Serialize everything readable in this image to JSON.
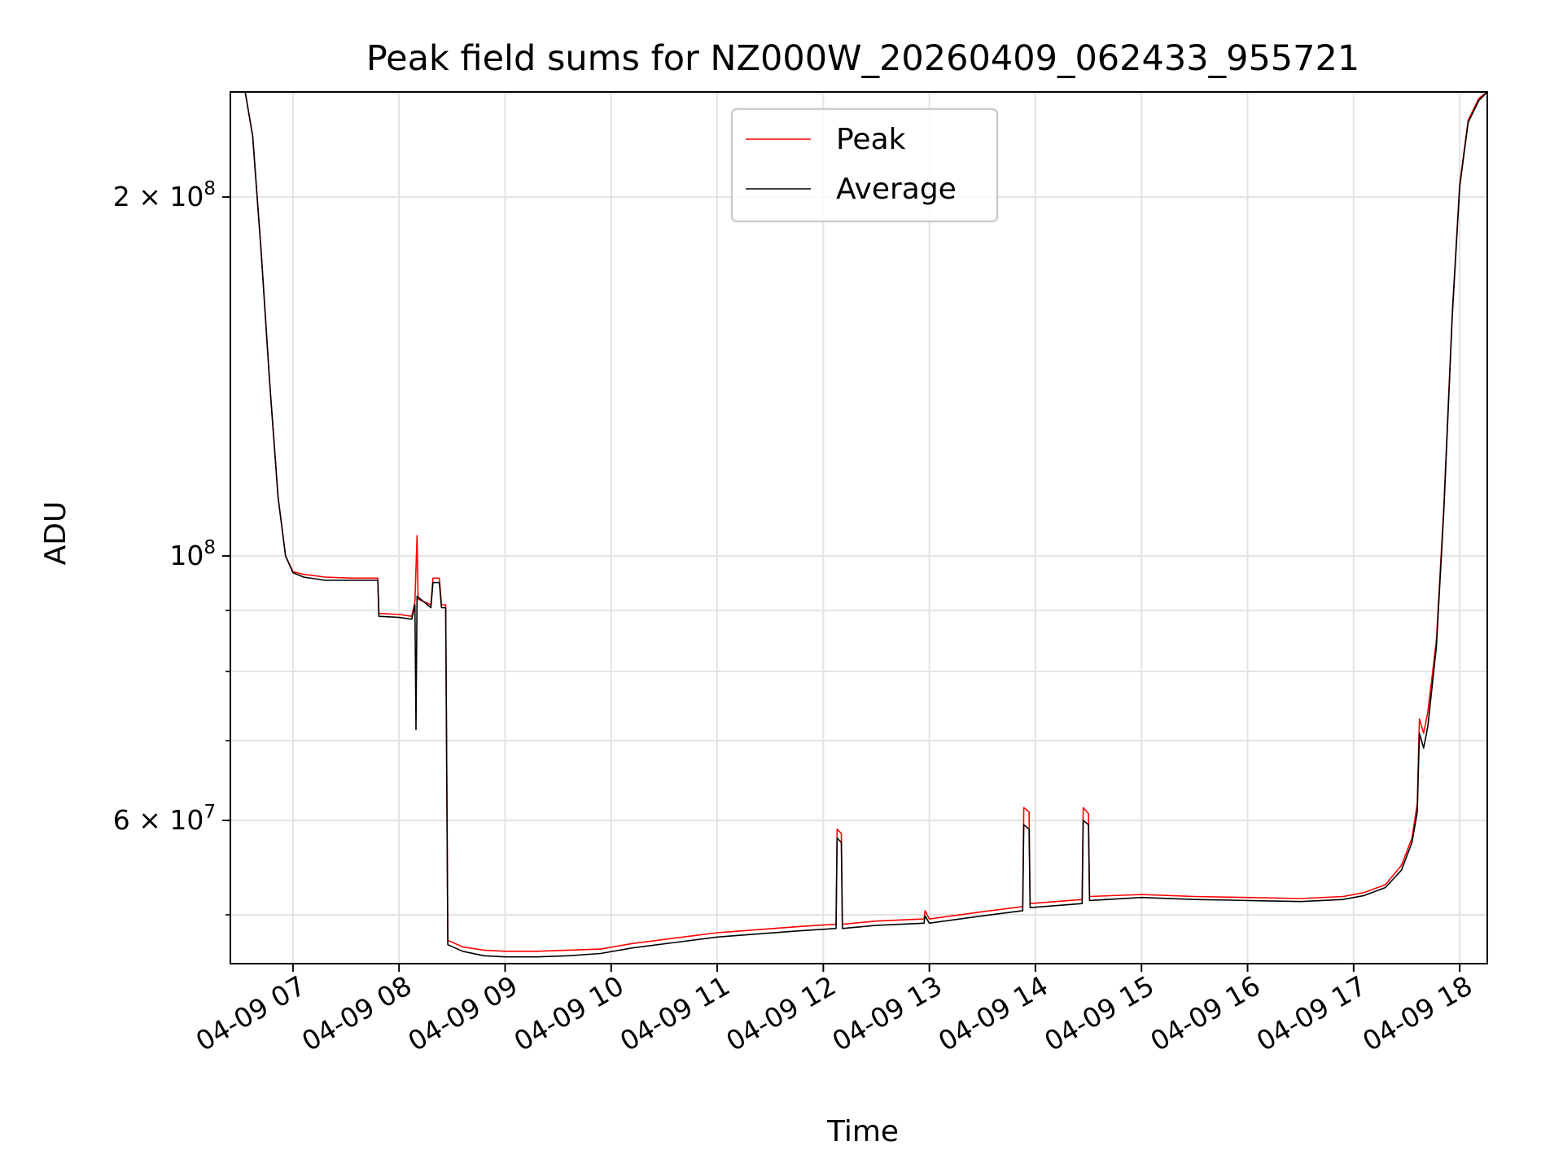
{
  "chart_data": {
    "type": "line",
    "title": "Peak field sums for NZ000W_20260409_062433_955721",
    "xlabel": "Time",
    "ylabel": "ADU",
    "yscale": "log",
    "ylim": [
      45500000,
      245000000
    ],
    "xlim_hours": [
      6.41,
      18.26
    ],
    "grid": true,
    "legend_position": "top-center",
    "x_ticks": [
      {
        "value": 7,
        "label": "04-09 07"
      },
      {
        "value": 8,
        "label": "04-09 08"
      },
      {
        "value": 9,
        "label": "04-09 09"
      },
      {
        "value": 10,
        "label": "04-09 10"
      },
      {
        "value": 11,
        "label": "04-09 11"
      },
      {
        "value": 12,
        "label": "04-09 12"
      },
      {
        "value": 13,
        "label": "04-09 13"
      },
      {
        "value": 14,
        "label": "04-09 14"
      },
      {
        "value": 15,
        "label": "04-09 15"
      },
      {
        "value": 16,
        "label": "04-09 16"
      },
      {
        "value": 17,
        "label": "04-09 17"
      },
      {
        "value": 18,
        "label": "04-09 18"
      }
    ],
    "y_major_ticks": [
      {
        "value": 60000000,
        "mantissa": "6",
        "label": "6 × 10⁷",
        "exp": "7"
      },
      {
        "value": 100000000,
        "mantissa": "",
        "label": "10⁸",
        "exp": "8"
      },
      {
        "value": 200000000,
        "mantissa": "2",
        "label": "2 × 10⁸",
        "exp": "8"
      }
    ],
    "y_minor_ticks": [
      50000000,
      70000000,
      80000000,
      90000000
    ],
    "series": [
      {
        "name": "Peak",
        "color": "#ff0000",
        "points": [
          [
            6.41,
            245000000
          ],
          [
            6.55,
            245000000
          ],
          [
            6.62,
            225000000
          ],
          [
            6.7,
            180000000
          ],
          [
            6.78,
            140000000
          ],
          [
            6.86,
            112000000
          ],
          [
            6.93,
            100000000
          ],
          [
            7.0,
            97000000
          ],
          [
            7.1,
            96500000
          ],
          [
            7.3,
            96000000
          ],
          [
            7.55,
            95800000
          ],
          [
            7.8,
            95800000
          ],
          [
            7.81,
            89500000
          ],
          [
            8.0,
            89300000
          ],
          [
            8.12,
            89000000
          ],
          [
            8.15,
            91500000
          ],
          [
            8.17,
            104000000
          ],
          [
            8.18,
            92000000
          ],
          [
            8.3,
            91000000
          ],
          [
            8.32,
            95800000
          ],
          [
            8.38,
            95800000
          ],
          [
            8.4,
            91000000
          ],
          [
            8.44,
            91000000
          ],
          [
            8.46,
            47600000
          ],
          [
            8.6,
            47000000
          ],
          [
            8.8,
            46700000
          ],
          [
            9.0,
            46600000
          ],
          [
            9.3,
            46600000
          ],
          [
            9.6,
            46700000
          ],
          [
            9.9,
            46800000
          ],
          [
            10.2,
            47300000
          ],
          [
            10.6,
            47800000
          ],
          [
            11.0,
            48300000
          ],
          [
            11.4,
            48600000
          ],
          [
            11.8,
            48900000
          ],
          [
            12.12,
            49100000
          ],
          [
            12.13,
            59000000
          ],
          [
            12.17,
            58500000
          ],
          [
            12.18,
            49100000
          ],
          [
            12.5,
            49400000
          ],
          [
            12.95,
            49600000
          ],
          [
            12.96,
            50400000
          ],
          [
            13.0,
            49600000
          ],
          [
            13.5,
            50300000
          ],
          [
            13.88,
            50800000
          ],
          [
            13.89,
            61500000
          ],
          [
            13.94,
            61000000
          ],
          [
            13.95,
            51100000
          ],
          [
            14.44,
            51500000
          ],
          [
            14.45,
            61500000
          ],
          [
            14.5,
            60800000
          ],
          [
            14.51,
            51800000
          ],
          [
            15.0,
            52000000
          ],
          [
            15.5,
            51800000
          ],
          [
            16.0,
            51700000
          ],
          [
            16.5,
            51600000
          ],
          [
            16.9,
            51800000
          ],
          [
            17.1,
            52200000
          ],
          [
            17.3,
            53000000
          ],
          [
            17.45,
            55000000
          ],
          [
            17.55,
            58000000
          ],
          [
            17.6,
            62000000
          ],
          [
            17.62,
            73000000
          ],
          [
            17.66,
            71000000
          ],
          [
            17.7,
            74000000
          ],
          [
            17.78,
            85000000
          ],
          [
            17.85,
            110000000
          ],
          [
            17.93,
            160000000
          ],
          [
            18.0,
            205000000
          ],
          [
            18.08,
            232000000
          ],
          [
            18.18,
            242000000
          ],
          [
            18.26,
            245000000
          ]
        ]
      },
      {
        "name": "Average",
        "color": "#000000",
        "points": [
          [
            6.41,
            245000000
          ],
          [
            6.55,
            245000000
          ],
          [
            6.62,
            225000000
          ],
          [
            6.7,
            180000000
          ],
          [
            6.78,
            140000000
          ],
          [
            6.86,
            112000000
          ],
          [
            6.93,
            100000000
          ],
          [
            7.0,
            96800000
          ],
          [
            7.1,
            96000000
          ],
          [
            7.3,
            95400000
          ],
          [
            7.55,
            95400000
          ],
          [
            7.8,
            95400000
          ],
          [
            7.81,
            89000000
          ],
          [
            8.0,
            88800000
          ],
          [
            8.12,
            88500000
          ],
          [
            8.15,
            91000000
          ],
          [
            8.16,
            71500000
          ],
          [
            8.17,
            92500000
          ],
          [
            8.3,
            90500000
          ],
          [
            8.32,
            95000000
          ],
          [
            8.38,
            95000000
          ],
          [
            8.4,
            90500000
          ],
          [
            8.44,
            90500000
          ],
          [
            8.46,
            47200000
          ],
          [
            8.6,
            46600000
          ],
          [
            8.8,
            46200000
          ],
          [
            9.0,
            46100000
          ],
          [
            9.3,
            46100000
          ],
          [
            9.6,
            46200000
          ],
          [
            9.9,
            46400000
          ],
          [
            10.2,
            46900000
          ],
          [
            10.6,
            47400000
          ],
          [
            11.0,
            47900000
          ],
          [
            11.4,
            48200000
          ],
          [
            11.8,
            48500000
          ],
          [
            12.12,
            48700000
          ],
          [
            12.13,
            58000000
          ],
          [
            12.17,
            57500000
          ],
          [
            12.18,
            48700000
          ],
          [
            12.5,
            49000000
          ],
          [
            12.95,
            49200000
          ],
          [
            12.96,
            49900000
          ],
          [
            13.0,
            49200000
          ],
          [
            13.5,
            49900000
          ],
          [
            13.88,
            50400000
          ],
          [
            13.89,
            59500000
          ],
          [
            13.94,
            59000000
          ],
          [
            13.95,
            50700000
          ],
          [
            14.44,
            51100000
          ],
          [
            14.45,
            60000000
          ],
          [
            14.5,
            59500000
          ],
          [
            14.51,
            51400000
          ],
          [
            15.0,
            51700000
          ],
          [
            15.5,
            51500000
          ],
          [
            16.0,
            51400000
          ],
          [
            16.5,
            51300000
          ],
          [
            16.9,
            51500000
          ],
          [
            17.1,
            51900000
          ],
          [
            17.3,
            52700000
          ],
          [
            17.45,
            54500000
          ],
          [
            17.55,
            57500000
          ],
          [
            17.6,
            61000000
          ],
          [
            17.62,
            71000000
          ],
          [
            17.66,
            69000000
          ],
          [
            17.7,
            72000000
          ],
          [
            17.78,
            84000000
          ],
          [
            17.85,
            109000000
          ],
          [
            17.93,
            159000000
          ],
          [
            18.0,
            204000000
          ],
          [
            18.08,
            231000000
          ],
          [
            18.18,
            241000000
          ],
          [
            18.26,
            245000000
          ]
        ]
      }
    ]
  }
}
